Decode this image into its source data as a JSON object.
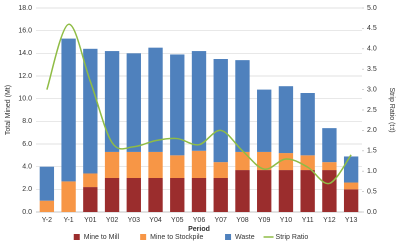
{
  "chart_data": {
    "type": "bar",
    "stacked": true,
    "categories": [
      "Y-2",
      "Y-1",
      "Y01",
      "Y02",
      "Y03",
      "Y04",
      "Y05",
      "Y06",
      "Y07",
      "Y08",
      "Y09",
      "Y10",
      "Y11",
      "Y12",
      "Y13"
    ],
    "series": [
      {
        "name": "Mine to Mill",
        "color": "#9b2d2d",
        "values": [
          0,
          0,
          2.2,
          3.0,
          3.0,
          3.0,
          3.0,
          3.0,
          3.0,
          3.7,
          3.7,
          3.7,
          3.7,
          3.7,
          2.0
        ]
      },
      {
        "name": "Mine to Stockpile",
        "color": "#f79646",
        "values": [
          1.0,
          2.7,
          1.2,
          2.3,
          2.3,
          2.3,
          2.0,
          2.4,
          1.4,
          1.6,
          1.6,
          1.5,
          1.3,
          0.7,
          0.6
        ]
      },
      {
        "name": "Waste",
        "color": "#4f81bd",
        "values": [
          3.0,
          12.6,
          11.0,
          8.9,
          8.7,
          9.2,
          8.9,
          8.8,
          9.1,
          8.1,
          5.5,
          5.9,
          5.5,
          3.0,
          2.3
        ]
      },
      {
        "name": "Strip Ratio",
        "color": "#8fbc45",
        "type": "line",
        "axis": "y2",
        "values": [
          3.0,
          4.6,
          3.2,
          1.7,
          1.6,
          1.75,
          1.8,
          1.65,
          2.0,
          1.5,
          1.05,
          1.3,
          1.1,
          0.7,
          1.4
        ]
      }
    ],
    "xlabel": "Period",
    "ylabel": "Total Mined (Mt)",
    "y2label": "Strip Ratio (t:t)",
    "ylim": [
      0,
      18
    ],
    "yticks": [
      {
        "value": 0,
        "label": "0.0"
      },
      {
        "value": 2,
        "label": "2.0"
      },
      {
        "value": 4,
        "label": "4.0"
      },
      {
        "value": 6,
        "label": "6.0"
      },
      {
        "value": 8,
        "label": "8.0"
      },
      {
        "value": 10,
        "label": "10.0"
      },
      {
        "value": 12,
        "label": "12.0"
      },
      {
        "value": 14,
        "label": "14.0"
      },
      {
        "value": 16,
        "label": "16.0"
      },
      {
        "value": 18,
        "label": "18.0"
      }
    ],
    "y2lim": [
      0,
      5
    ],
    "y2ticks": [
      {
        "value": 0,
        "label": "0.0"
      },
      0.5,
      {
        "value": 1,
        "label": "1.0"
      },
      1.5,
      {
        "value": 2,
        "label": "2.0"
      },
      2.5,
      {
        "value": 3,
        "label": "3.0"
      },
      3.5,
      {
        "value": 4,
        "label": "4.0"
      },
      4.5,
      {
        "value": 5,
        "label": "5.0"
      }
    ],
    "grid": true,
    "legend": "bottom"
  }
}
